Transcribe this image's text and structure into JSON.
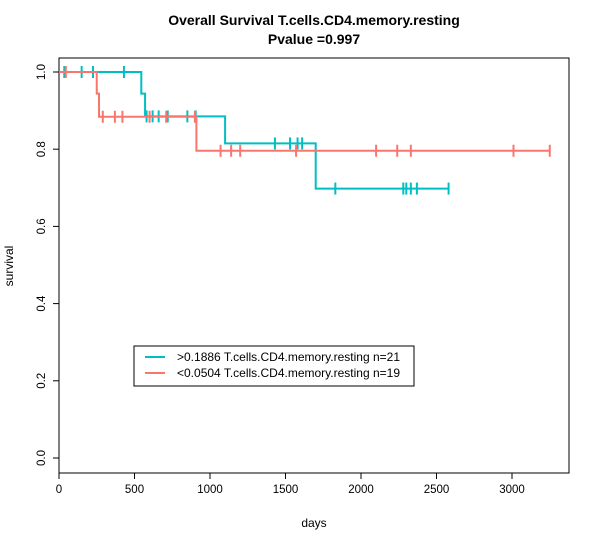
{
  "chart_data": {
    "type": "line",
    "subtype": "kaplan-meier-step",
    "title": "Overall Survival T.cells.CD4.memory.resting",
    "subtitle": "Pvalue =0.997",
    "xlabel": "days",
    "ylabel": "survival",
    "xlim": [
      0,
      3400
    ],
    "ylim": [
      0,
      1
    ],
    "x_ticks": [
      0,
      500,
      1000,
      1500,
      2000,
      2500,
      3000
    ],
    "y_ticks": [
      0.0,
      0.2,
      0.4,
      0.6,
      0.8,
      1.0
    ],
    "x_tick_labels": [
      "0",
      "500",
      "1000",
      "1500",
      "2000",
      "2500",
      "3000"
    ],
    "y_tick_labels": [
      "0.0",
      "0.2",
      "0.4",
      "0.6",
      "0.8",
      "1.0"
    ],
    "grid": false,
    "legend_position": "lower-left",
    "series": [
      {
        "name": ">0.1886 T.cells.CD4.memory.resting n=21",
        "color": "#00BFC4",
        "steps": [
          {
            "x": 0,
            "y": 1.0
          },
          {
            "x": 545,
            "y": 0.944
          },
          {
            "x": 570,
            "y": 0.885
          },
          {
            "x": 1100,
            "y": 0.815
          },
          {
            "x": 1700,
            "y": 0.698
          }
        ],
        "end_x": 2580,
        "censor": [
          {
            "x": 35,
            "y": 1.0
          },
          {
            "x": 150,
            "y": 1.0
          },
          {
            "x": 225,
            "y": 1.0
          },
          {
            "x": 430,
            "y": 1.0
          },
          {
            "x": 580,
            "y": 0.885
          },
          {
            "x": 620,
            "y": 0.885
          },
          {
            "x": 660,
            "y": 0.885
          },
          {
            "x": 720,
            "y": 0.885
          },
          {
            "x": 850,
            "y": 0.885
          },
          {
            "x": 905,
            "y": 0.885
          },
          {
            "x": 1430,
            "y": 0.815
          },
          {
            "x": 1530,
            "y": 0.815
          },
          {
            "x": 1580,
            "y": 0.815
          },
          {
            "x": 1610,
            "y": 0.815
          },
          {
            "x": 1830,
            "y": 0.698
          },
          {
            "x": 2280,
            "y": 0.698
          },
          {
            "x": 2300,
            "y": 0.698
          },
          {
            "x": 2330,
            "y": 0.698
          },
          {
            "x": 2370,
            "y": 0.698
          },
          {
            "x": 2580,
            "y": 0.698
          }
        ]
      },
      {
        "name": "<0.0504 T.cells.CD4.memory.resting n=19",
        "color": "#F8766D",
        "steps": [
          {
            "x": 0,
            "y": 1.0
          },
          {
            "x": 250,
            "y": 0.944
          },
          {
            "x": 265,
            "y": 0.884
          },
          {
            "x": 910,
            "y": 0.796
          }
        ],
        "end_x": 3250,
        "censor": [
          {
            "x": 45,
            "y": 1.0
          },
          {
            "x": 290,
            "y": 0.884
          },
          {
            "x": 370,
            "y": 0.884
          },
          {
            "x": 420,
            "y": 0.884
          },
          {
            "x": 600,
            "y": 0.884
          },
          {
            "x": 710,
            "y": 0.884
          },
          {
            "x": 900,
            "y": 0.884
          },
          {
            "x": 1070,
            "y": 0.796
          },
          {
            "x": 1140,
            "y": 0.796
          },
          {
            "x": 1200,
            "y": 0.796
          },
          {
            "x": 1570,
            "y": 0.796
          },
          {
            "x": 2100,
            "y": 0.796
          },
          {
            "x": 2240,
            "y": 0.796
          },
          {
            "x": 2330,
            "y": 0.796
          },
          {
            "x": 3010,
            "y": 0.796
          },
          {
            "x": 3250,
            "y": 0.796
          }
        ]
      }
    ]
  }
}
